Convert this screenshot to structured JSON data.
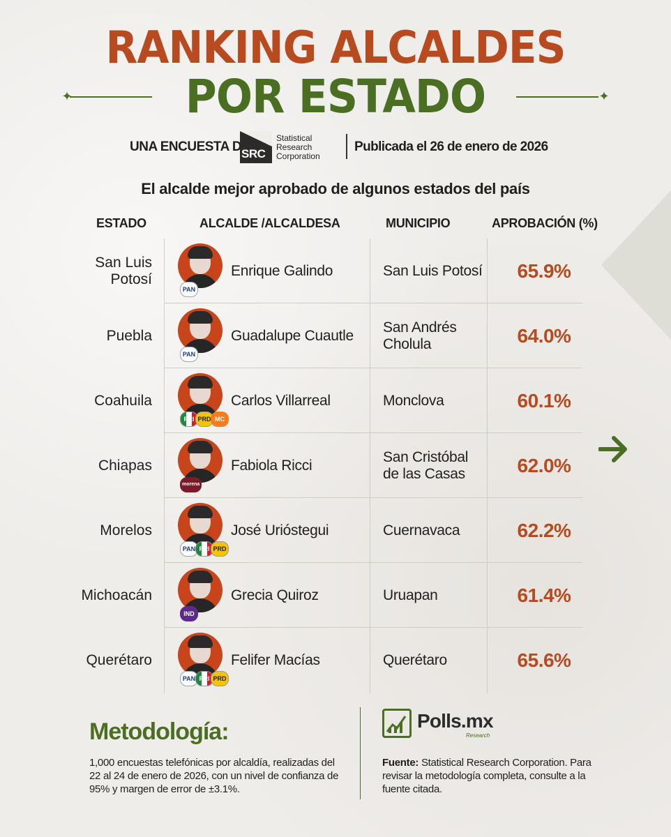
{
  "header": {
    "title_line1": "RANKING ALCALDES",
    "title_line2": "POR ESTADO",
    "survey_label": "UNA ENCUESTA DE:",
    "src_logo_text": "SRC",
    "src_name_line1": "Statistical",
    "src_name_line2": "Research",
    "src_name_line3": "Corporation",
    "published": "Publicada el 26 de enero de 2026",
    "subtitle": "El alcalde mejor aprobado de algunos estados del país"
  },
  "table": {
    "columns": [
      "ESTADO",
      "ALCALDE /ALCALDESA",
      "MUNICIPIO",
      "APROBACIÓN (%)"
    ],
    "rows": [
      {
        "estado": "San Luis Potosí",
        "alcalde": "Enrique Galindo",
        "municipio": "San Luis Potosí",
        "aprobacion": "65.9%",
        "parties": [
          "PAN"
        ]
      },
      {
        "estado": "Puebla",
        "alcalde": "Guadalupe Cuautle",
        "municipio": "San Andrés Cholula",
        "aprobacion": "64.0%",
        "parties": [
          "PAN"
        ]
      },
      {
        "estado": "Coahuila",
        "alcalde": "Carlos Villarreal",
        "municipio": "Monclova",
        "aprobacion": "60.1%",
        "parties": [
          "PRI",
          "PRD",
          "MC"
        ]
      },
      {
        "estado": "Chiapas",
        "alcalde": "Fabiola Ricci",
        "municipio": "San Cristóbal de las Casas",
        "aprobacion": "62.0%",
        "parties": [
          "morena"
        ]
      },
      {
        "estado": "Morelos",
        "alcalde": "José Urióstegui",
        "municipio": "Cuernavaca",
        "aprobacion": "62.2%",
        "parties": [
          "PAN",
          "PRI",
          "PRD"
        ]
      },
      {
        "estado": "Michoacán",
        "alcalde": "Grecia Quiroz",
        "municipio": "Uruapan",
        "aprobacion": "61.4%",
        "parties": [
          "IND"
        ]
      },
      {
        "estado": "Querétaro",
        "alcalde": "Felifer Macías",
        "municipio": "Querétaro",
        "aprobacion": "65.6%",
        "parties": [
          "PAN",
          "PRI",
          "PRD"
        ]
      }
    ]
  },
  "footer": {
    "methodology_title": "Metodología:",
    "methodology_text": "1,000 encuestas telefónicas por alcaldía, realizadas del 22 al 24 de enero de 2026, con un nivel de confianza de 95% y margen de error de ±3.1%.",
    "polls_name": "Polls.mx",
    "polls_sub": "Research",
    "fuente_label": "Fuente:",
    "fuente_text": " Statistical Research Corporation. Para revisar la metodología completa, consulte a la fuente citada."
  },
  "colors": {
    "accent_orange": "#b84a1f",
    "accent_green": "#4a6e22"
  },
  "icons": {
    "next": "arrow-right-icon",
    "ornament": "star-ornament-icon"
  }
}
